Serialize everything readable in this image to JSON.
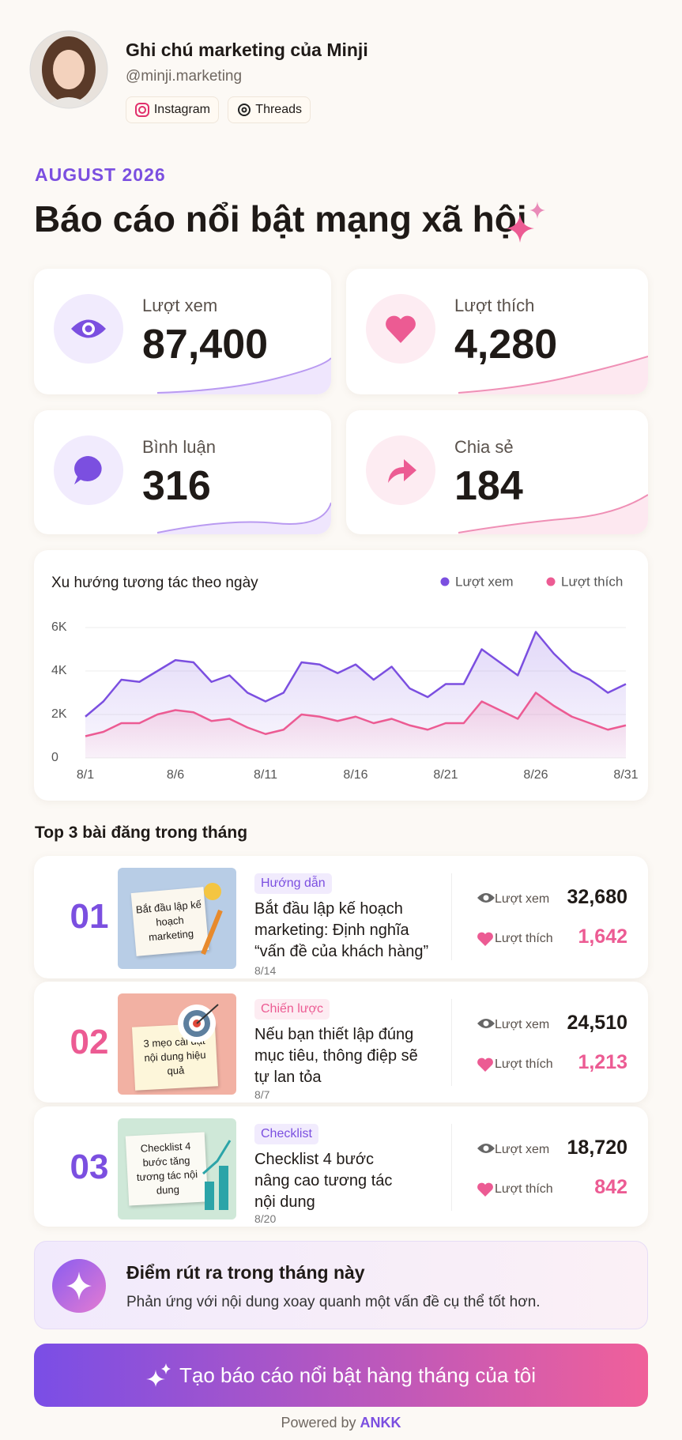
{
  "header": {
    "name": "Ghi chú marketing của Minji",
    "handle": "@minji.marketing",
    "links": [
      "Instagram",
      "Threads"
    ]
  },
  "month": "AUGUST 2026",
  "title": "Báo cáo nổi bật mạng xã hội",
  "stats": [
    {
      "label": "Lượt xem",
      "value": "87,400"
    },
    {
      "label": "Lượt thích",
      "value": "4,280"
    },
    {
      "label": "Bình luận",
      "value": "316"
    },
    {
      "label": "Chia sẻ",
      "value": "184"
    }
  ],
  "chart_data": {
    "type": "area",
    "title": "Xu hướng tương tác theo ngày",
    "categories": [
      "8/1",
      null,
      null,
      null,
      null,
      "8/6",
      null,
      null,
      null,
      null,
      "8/11",
      null,
      null,
      null,
      null,
      "8/16",
      null,
      null,
      null,
      null,
      "8/21",
      null,
      null,
      null,
      null,
      "8/26",
      null,
      null,
      null,
      null,
      "8/31"
    ],
    "series": [
      {
        "name": "Lượt xem",
        "color": "#7b4fe0",
        "values": [
          1900,
          2600,
          3600,
          3500,
          4000,
          4500,
          4400,
          3500,
          3800,
          3000,
          2600,
          3000,
          4400,
          4300,
          3900,
          4300,
          3600,
          4200,
          3200,
          2800,
          3400,
          3400,
          5000,
          4400,
          3800,
          5800,
          4800,
          4000,
          3600,
          3000,
          3400
        ]
      },
      {
        "name": "Lượt thích",
        "color": "#ec5b93",
        "values": [
          1000,
          1200,
          1600,
          1600,
          2000,
          2200,
          2100,
          1700,
          1800,
          1400,
          1100,
          1300,
          2000,
          1900,
          1700,
          1900,
          1600,
          1800,
          1500,
          1300,
          1600,
          1600,
          2600,
          2200,
          1800,
          3000,
          2400,
          1900,
          1600,
          1300,
          1500
        ]
      }
    ],
    "ylim": [
      0,
      6000
    ],
    "yticks": [
      0,
      {
        "value": 2000,
        "label": "2K"
      },
      {
        "value": 4000,
        "label": "4K"
      },
      {
        "value": 6000,
        "label": "6K"
      }
    ],
    "grid": true,
    "legend": "top-right"
  },
  "top_title": "Top 3 bài đăng trong tháng",
  "posts": [
    {
      "rank": "01",
      "tag": "Hướng dẫn",
      "title": "Bắt đầu lập kế hoạch marketing: Định nghĩa “vấn đề của khách hàng”",
      "date": "8/14",
      "thumb": "Bắt đầu lập kế hoạch marketing",
      "stats": [
        {
          "label": "Lượt xem",
          "value": "32,680"
        },
        {
          "label": "Lượt thích",
          "value": "1,642"
        }
      ]
    },
    {
      "rank": "02",
      "tag": "Chiến lược",
      "title": "Nếu bạn thiết lập đúng mục tiêu, thông điệp sẽ tự lan tỏa",
      "date": "8/7",
      "thumb": "3 mẹo cài đặt nội dung hiệu quả",
      "stats": [
        {
          "label": "Lượt xem",
          "value": "24,510"
        },
        {
          "label": "Lượt thích",
          "value": "1,213"
        }
      ]
    },
    {
      "rank": "03",
      "tag": "Checklist",
      "title": "Checklist 4 bước nâng cao tương tác nội dung",
      "date": "8/20",
      "thumb": "Checklist 4 bước tăng tương tác nội dung",
      "stats": [
        {
          "label": "Lượt xem",
          "value": "18,720"
        },
        {
          "label": "Lượt thích",
          "value": "842"
        }
      ]
    }
  ],
  "takeaway": {
    "title": "Điểm rút ra trong tháng này",
    "text": "Phản ứng với nội dung xoay quanh một vấn đề cụ thể tốt hơn."
  },
  "cta": "Tạo báo cáo nổi bật hàng tháng của tôi",
  "footer": {
    "prefix": "Powered by",
    "brand": "ANKK"
  }
}
